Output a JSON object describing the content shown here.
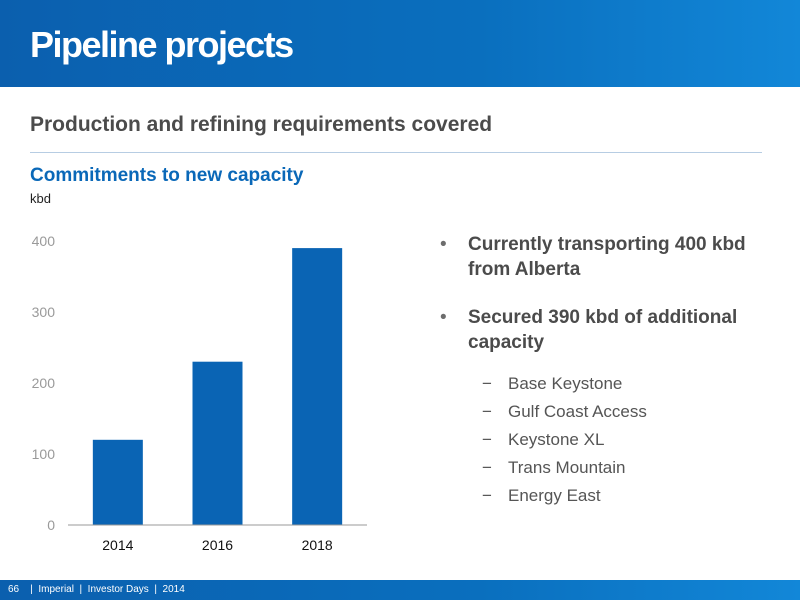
{
  "header": {
    "title": "Pipeline projects"
  },
  "subtitle": "Production and refining requirements covered",
  "chart_data": {
    "type": "bar",
    "title": "Commitments to new capacity",
    "unit_label": "kbd",
    "categories": [
      "2014",
      "2016",
      "2018"
    ],
    "values": [
      120,
      230,
      390
    ],
    "yticks": [
      0,
      100,
      200,
      300,
      400
    ],
    "ylim": [
      0,
      400
    ],
    "grid": false,
    "bar_color": "#0a64b4"
  },
  "bullets": [
    {
      "text": "Currently transporting 400 kbd from Alberta"
    },
    {
      "text": "Secured 390 kbd of additional capacity"
    }
  ],
  "bullet_glyph": "•",
  "sub_items": [
    {
      "text": "Base Keystone"
    },
    {
      "text": "Gulf Coast Access"
    },
    {
      "text": "Keystone XL"
    },
    {
      "text": "Trans Mountain"
    },
    {
      "text": "Energy East"
    }
  ],
  "sub_glyph": "−",
  "footer": {
    "text": "66    |  Imperial  |  Investor Days  |  2014"
  },
  "colors": {
    "brand_blue": "#0a68b8",
    "header_gradient_end": "#1287d8"
  }
}
